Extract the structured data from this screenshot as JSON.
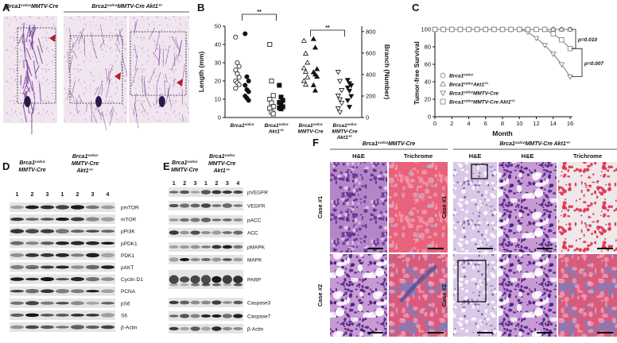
{
  "panels": {
    "a": {
      "label": "A",
      "titles": [
        [
          [
            "Brca1",
            "co/co",
            "MMTV-Cre"
          ]
        ],
        [
          [
            "Brca1",
            "co/co",
            "MMTV-Cre Akt1",
            "+/-"
          ]
        ]
      ]
    },
    "d": {
      "label": "D",
      "groups": [
        [
          [
            "Brca1",
            "co/co"
          ],
          [
            "MMTV-Cre"
          ]
        ],
        [
          [
            "Brca1",
            "co/co"
          ],
          [
            "MMTV-Cre"
          ],
          [
            "Akt1",
            "+/-"
          ]
        ]
      ],
      "lanes": [
        "1",
        "2",
        "3",
        "1",
        "2",
        "3",
        "4"
      ],
      "rows": [
        "pmTOR",
        "mTOR",
        "pPI3K",
        "pPDK1",
        "PDK1",
        "pAKT",
        "Cyclin D1",
        "PCNA",
        "pS6",
        "S6",
        "β-Actin"
      ]
    },
    "e": {
      "label": "E",
      "groups": [
        [
          [
            "Brca1",
            "co/co"
          ],
          [
            "MMTV-Cre"
          ]
        ],
        [
          [
            "Brca1",
            "co/co"
          ],
          [
            "MMTV-Cre"
          ],
          [
            "Akt1",
            "+/-"
          ]
        ]
      ],
      "lanes": [
        "1",
        "2",
        "3",
        "1",
        "2",
        "3",
        "4"
      ],
      "rows": [
        "pVEGFR",
        "VEGFR",
        "pACC",
        "ACC",
        "pMAPK",
        "MAPK",
        "PARP",
        "Caspase3",
        "Caspase7",
        "β-Actin"
      ]
    },
    "f": {
      "label": "F",
      "groups": [
        [
          [
            "Brca1",
            "co/co",
            "MMTV-Cre"
          ]
        ],
        [
          [
            "Brca1",
            "co/co",
            "MMTV-Cre Akt1",
            "+/-"
          ]
        ]
      ],
      "columns": [
        "H&E",
        "Trichrome",
        "H&E",
        "H&E",
        "Trichrome"
      ],
      "cases": [
        "Case #1",
        "Case #2"
      ]
    }
  },
  "chart_data": [
    {
      "type": "scatter",
      "panel_label": "B",
      "y_label": "Length (mm)",
      "y2_label": "Branch (Number)",
      "categories": [
        [
          [
            "Brca1",
            "co/co"
          ]
        ],
        [
          [
            "Brca1",
            "co/co"
          ],
          [
            "Akt1",
            "+/-"
          ]
        ],
        [
          [
            "Brca1",
            "co/co"
          ],
          [
            "MMTV-Cre"
          ]
        ],
        [
          [
            "Brca1",
            "co/co"
          ],
          [
            "MMTV-Cre"
          ],
          [
            "Akt1",
            "+/-"
          ]
        ]
      ],
      "ylim": [
        0,
        50
      ],
      "yticks": [
        0,
        10,
        20,
        30,
        40,
        50
      ],
      "y2lim": [
        0,
        850
      ],
      "y2ticks": [
        0,
        200,
        400,
        600,
        800
      ],
      "annotations": [
        "**",
        "**"
      ],
      "series": [
        {
          "category": 0,
          "marker": "circle",
          "fill": "open",
          "color": "#111111",
          "values": [
            44,
            30,
            28,
            26,
            24,
            22,
            20,
            19,
            18,
            16
          ]
        },
        {
          "category": 0,
          "marker": "circle",
          "fill": "filled",
          "color": "#111111",
          "axis": "y2",
          "values": [
            780,
            380,
            340,
            300,
            260,
            240,
            200,
            180,
            160
          ]
        },
        {
          "category": 1,
          "marker": "square",
          "fill": "open",
          "color": "#111111",
          "values": [
            40,
            20,
            12,
            10,
            8,
            6,
            5,
            3,
            2
          ]
        },
        {
          "category": 1,
          "marker": "square",
          "fill": "filled",
          "color": "#111111",
          "axis": "y2",
          "values": [
            300,
            190,
            160,
            140,
            120,
            100,
            90,
            80
          ]
        },
        {
          "category": 2,
          "marker": "triangle",
          "fill": "open",
          "color": "#111111",
          "values": [
            42,
            35,
            30,
            27,
            25,
            22,
            20,
            18
          ]
        },
        {
          "category": 2,
          "marker": "triangle",
          "fill": "filled",
          "color": "#111111",
          "axis": "y2",
          "values": [
            730,
            650,
            450,
            420,
            400,
            380,
            300,
            250
          ]
        },
        {
          "category": 3,
          "marker": "triangle-down",
          "fill": "open",
          "color": "#111111",
          "values": [
            25,
            20,
            15,
            12,
            10,
            8,
            5,
            3
          ]
        },
        {
          "category": 3,
          "marker": "triangle-down",
          "fill": "filled",
          "color": "#111111",
          "axis": "y2",
          "values": [
            350,
            320,
            300,
            280,
            250,
            200,
            160,
            100
          ]
        }
      ]
    },
    {
      "type": "line",
      "panel_label": "C",
      "y_label": "Tumor-free Survival",
      "x_label": "Month",
      "x": [
        0,
        1,
        2,
        3,
        4,
        5,
        6,
        7,
        8,
        9,
        10,
        11,
        12,
        13,
        14,
        15,
        16
      ],
      "xlim": [
        0,
        16
      ],
      "xticks": [
        0,
        2,
        4,
        6,
        8,
        10,
        12,
        14,
        16
      ],
      "ylim": [
        0,
        100
      ],
      "yticks": [
        0,
        20,
        40,
        60,
        80,
        100
      ],
      "annotations": [
        "p=0.010",
        "p=0.007"
      ],
      "series": [
        {
          "name": [
            [
              "Brca1",
              "co/co"
            ]
          ],
          "marker": "circle",
          "color": "#777777",
          "values": [
            100,
            100,
            100,
            100,
            100,
            100,
            100,
            100,
            100,
            100,
            100,
            100,
            100,
            100,
            100,
            100,
            100
          ]
        },
        {
          "name": [
            [
              "Brca1",
              "co/co",
              "Akt1",
              "+/-"
            ]
          ],
          "marker": "triangle",
          "color": "#777777",
          "values": [
            100,
            100,
            100,
            100,
            100,
            100,
            100,
            100,
            100,
            100,
            100,
            100,
            100,
            100,
            100,
            100,
            100
          ]
        },
        {
          "name": [
            [
              "Brca1",
              "co/co",
              "MMTV-Cre"
            ]
          ],
          "marker": "triangle-down",
          "color": "#777777",
          "values": [
            100,
            100,
            100,
            100,
            100,
            100,
            100,
            100,
            100,
            100,
            100,
            97,
            90,
            82,
            72,
            60,
            46
          ]
        },
        {
          "name": [
            [
              "Brca1",
              "co/co",
              "MMTV-Cre Akt1",
              "+/-"
            ]
          ],
          "marker": "square",
          "color": "#777777",
          "values": [
            100,
            100,
            100,
            100,
            100,
            100,
            100,
            100,
            100,
            100,
            100,
            100,
            100,
            100,
            95,
            88,
            78
          ]
        }
      ]
    }
  ]
}
